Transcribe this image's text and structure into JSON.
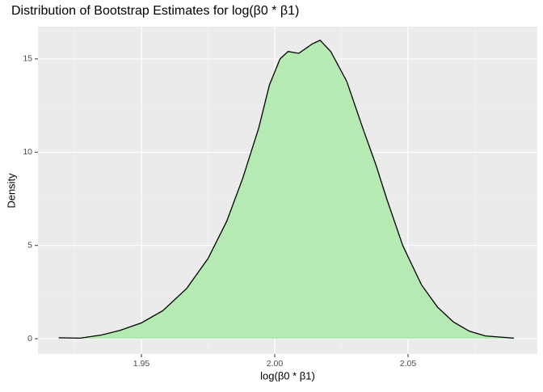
{
  "chart_data": {
    "type": "area",
    "title": "Distribution of Bootstrap Estimates for log(β0 * β1)",
    "x_label": "log(β0 * β1)",
    "y_label": "Density",
    "x": [
      1.919,
      1.927,
      1.935,
      1.942,
      1.95,
      1.958,
      1.967,
      1.975,
      1.982,
      1.988,
      1.994,
      1.998,
      2.002,
      2.005,
      2.009,
      2.014,
      2.017,
      2.021,
      2.027,
      2.033,
      2.038,
      2.042,
      2.048,
      2.055,
      2.061,
      2.067,
      2.073,
      2.079,
      2.0897
    ],
    "values": [
      0.05,
      0.03,
      0.2,
      0.45,
      0.85,
      1.5,
      2.7,
      4.3,
      6.3,
      8.6,
      11.3,
      13.6,
      15.0,
      15.4,
      15.3,
      15.8,
      16.0,
      15.4,
      13.8,
      11.3,
      9.3,
      7.5,
      5.0,
      2.9,
      1.7,
      0.9,
      0.4,
      0.15,
      0.03
    ],
    "fill_color": "#b5eab3",
    "line_color": "#000000",
    "xlim": [
      1.9112,
      2.0985
    ],
    "ylim": [
      -0.82,
      16.73
    ],
    "xticks": [
      1.95,
      {
        "value": 2,
        "label": "2.00"
      },
      2.05
    ],
    "yticks": [
      0,
      5,
      10,
      15
    ],
    "xminorticks": [
      1.925,
      1.975,
      2.025,
      2.075
    ],
    "yminorticks": [
      2.5,
      7.5,
      12.5
    ],
    "grid": true
  }
}
